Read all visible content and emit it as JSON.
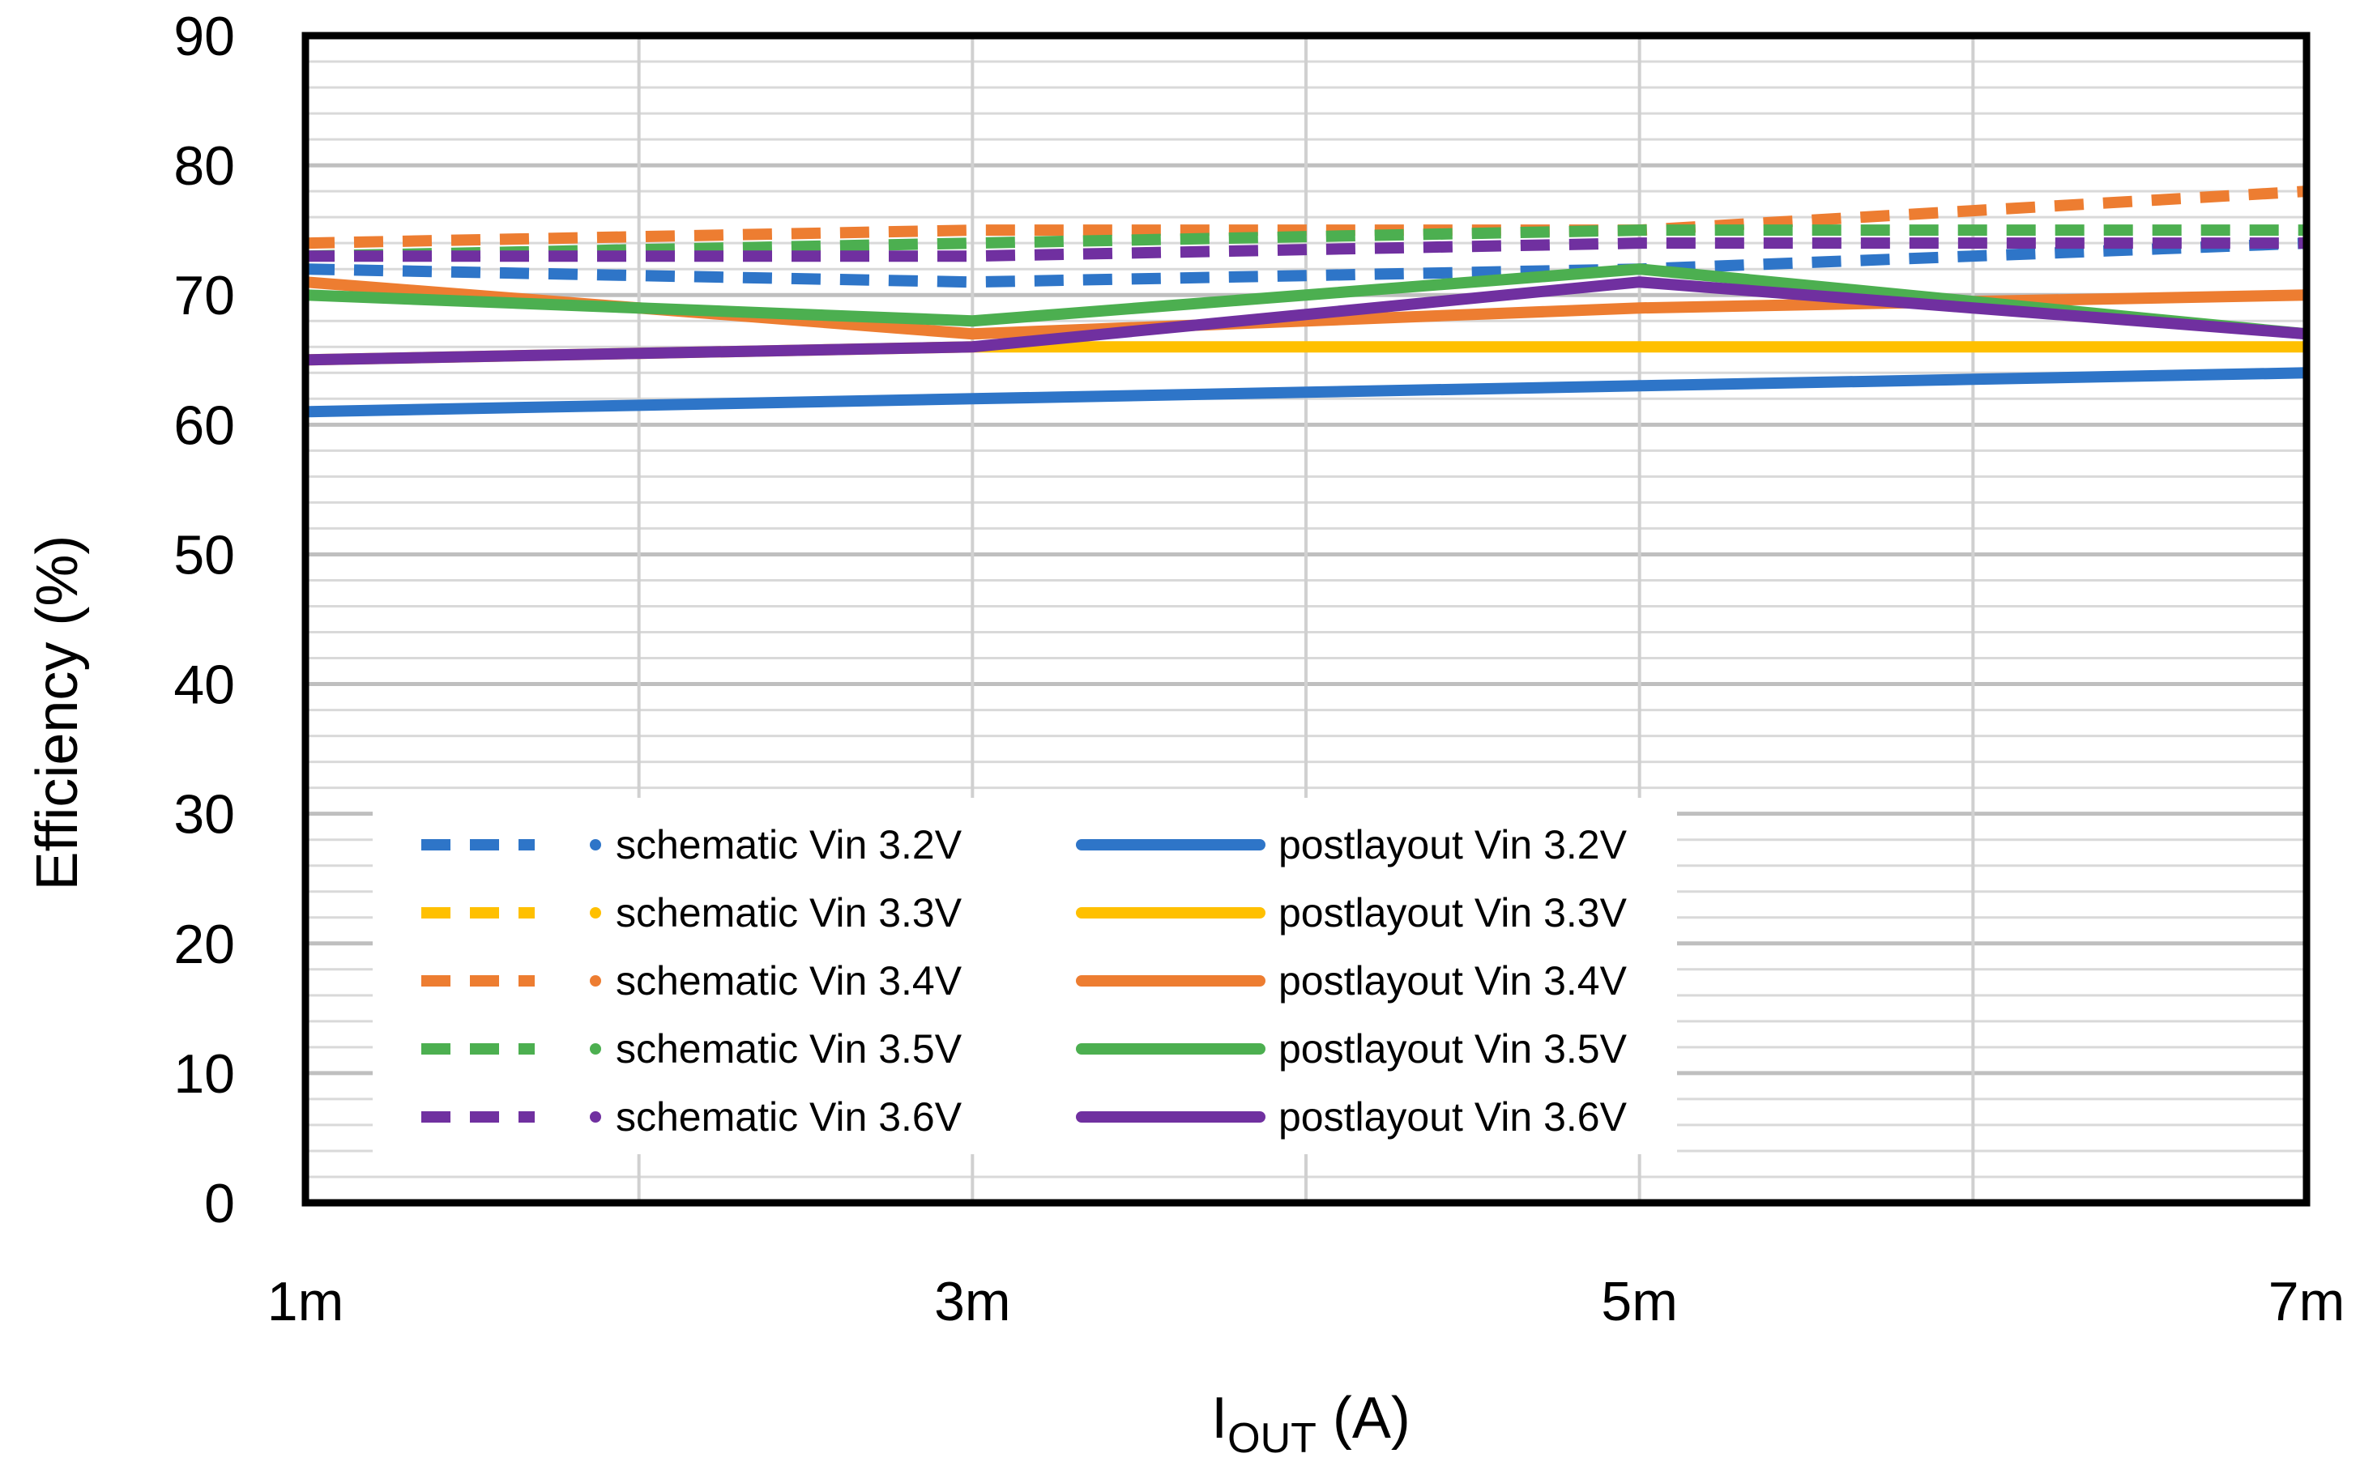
{
  "chart_data": {
    "type": "line",
    "title": "",
    "xlabel_main": "I",
    "xlabel_sub": "OUT",
    "xlabel_unit": " (A)",
    "ylabel": "Efficiency (%)",
    "x": [
      1,
      2,
      3,
      4,
      5,
      6,
      7
    ],
    "x_tick_labels": [
      "1m",
      "3m",
      "5m",
      "7m"
    ],
    "x_tick_values": [
      1,
      3,
      5,
      7
    ],
    "xlim": [
      1,
      7
    ],
    "ylim": [
      0,
      90
    ],
    "y_ticks": [
      0,
      10,
      20,
      30,
      40,
      50,
      60,
      70,
      80,
      90
    ],
    "grid": true,
    "legend_position": "lower-center",
    "series": [
      {
        "name": "schematic Vin 3.2V",
        "color": "#2E75C8",
        "style": "dashed",
        "values": [
          72,
          71.5,
          71,
          71.5,
          72,
          73,
          74
        ]
      },
      {
        "name": "schematic Vin 3.3V",
        "color": "#FFC000",
        "style": "dashed",
        "values": [
          null,
          null,
          null,
          null,
          null,
          null,
          null
        ]
      },
      {
        "name": "schematic Vin 3.4V",
        "color": "#ED7D31",
        "style": "dashed",
        "values": [
          74,
          74.5,
          75,
          75,
          75,
          76.5,
          78
        ]
      },
      {
        "name": "schematic Vin 3.5V",
        "color": "#4CAF50",
        "style": "dashed",
        "values": [
          73,
          73.5,
          74,
          74.5,
          75,
          75,
          75
        ]
      },
      {
        "name": "schematic Vin 3.6V",
        "color": "#7030A0",
        "style": "dashed",
        "values": [
          73,
          73,
          73,
          73.5,
          74,
          74,
          74
        ]
      },
      {
        "name": "postlayout Vin 3.2V",
        "color": "#2E75C8",
        "style": "solid",
        "values": [
          61,
          61.5,
          62,
          62.5,
          63,
          63.5,
          64
        ]
      },
      {
        "name": "postlayout Vin 3.3V",
        "color": "#FFC000",
        "style": "solid",
        "values": [
          65,
          65.5,
          66,
          66,
          66,
          66,
          66
        ]
      },
      {
        "name": "postlayout Vin 3.4V",
        "color": "#ED7D31",
        "style": "solid",
        "values": [
          71,
          69,
          67,
          68,
          69,
          69.5,
          70
        ]
      },
      {
        "name": "postlayout Vin 3.5V",
        "color": "#4CAF50",
        "style": "solid",
        "values": [
          70,
          69,
          68,
          70,
          72,
          69.5,
          67
        ]
      },
      {
        "name": "postlayout Vin 3.6V",
        "color": "#7030A0",
        "style": "solid",
        "values": [
          65,
          65.5,
          66,
          68.5,
          71,
          69,
          67
        ]
      }
    ]
  }
}
